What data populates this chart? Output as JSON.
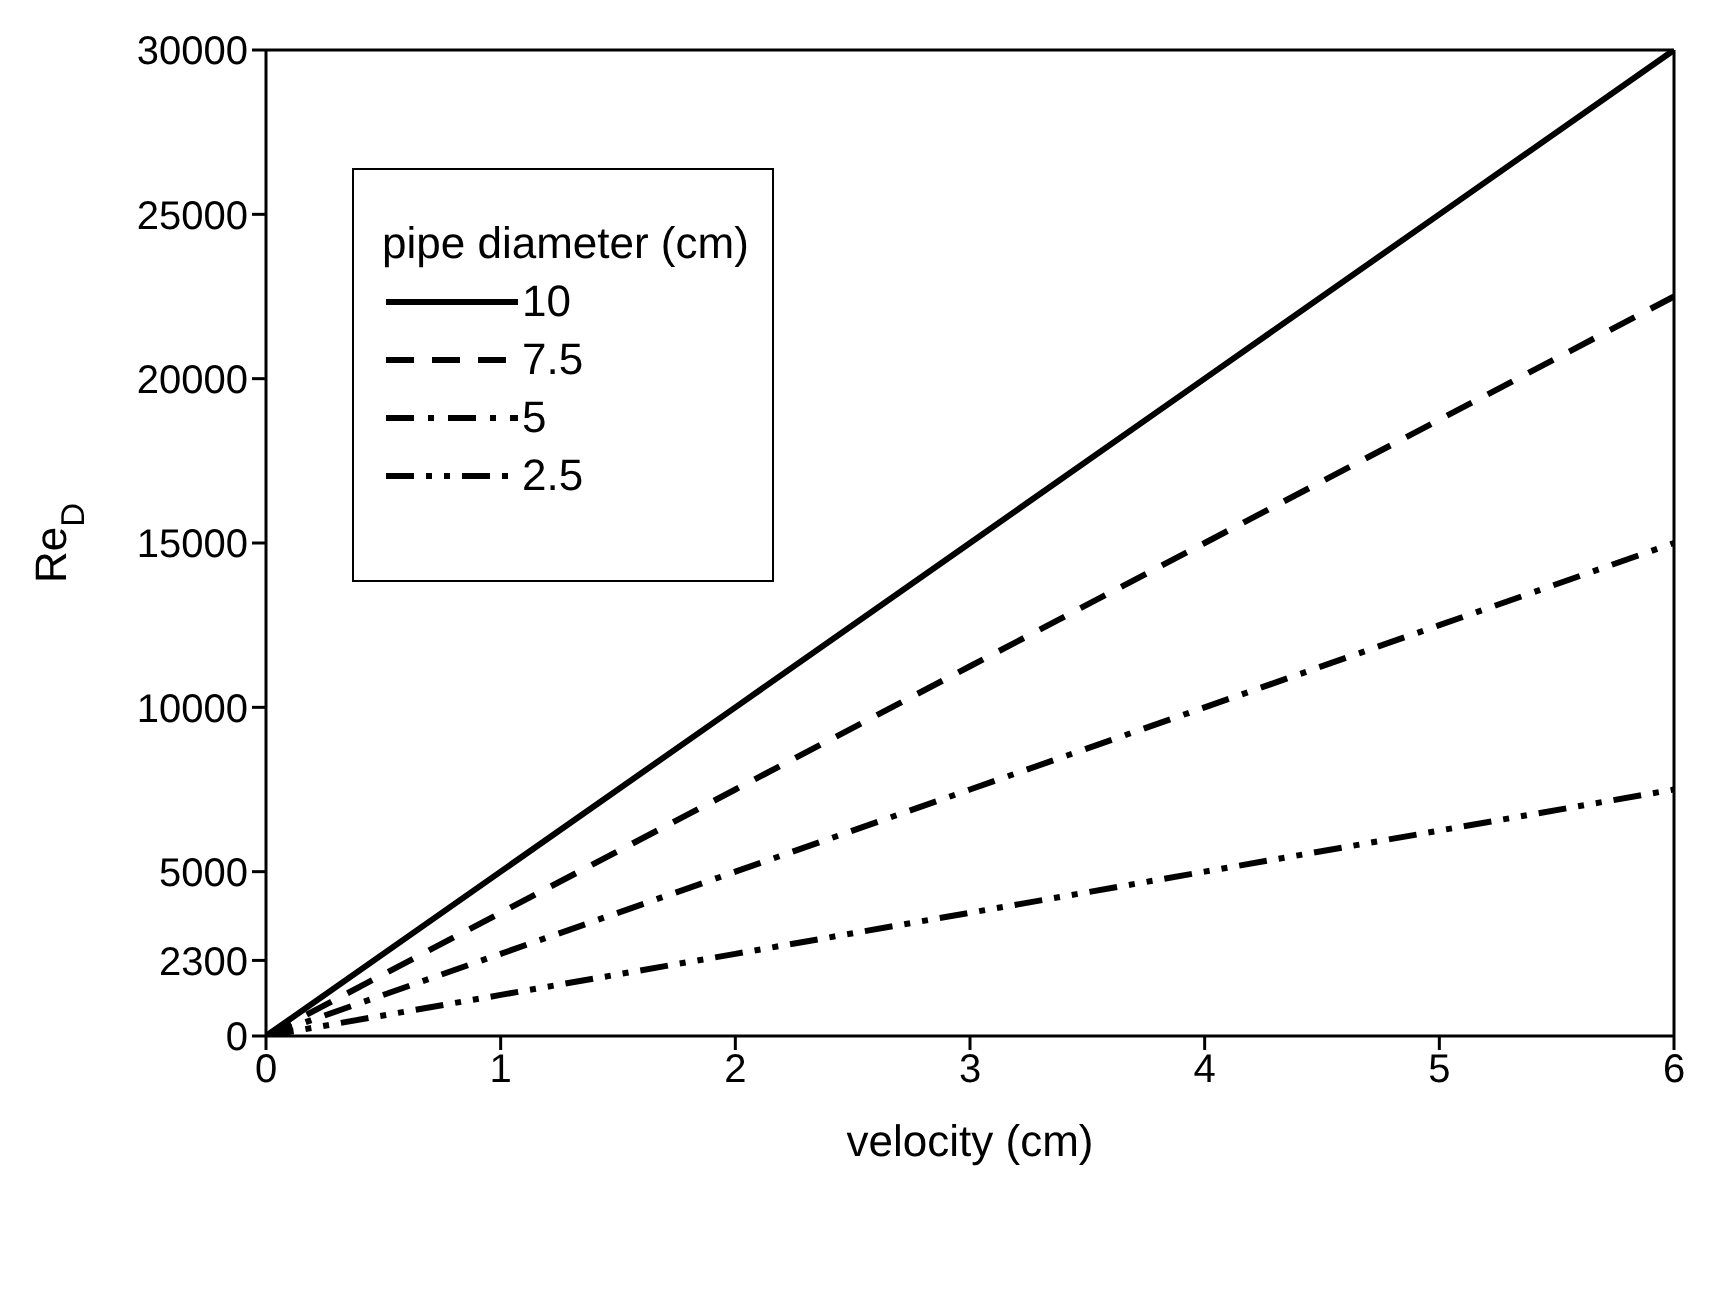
{
  "chart_data": {
    "type": "line",
    "xlabel": "velocity (cm)",
    "ylabel": "Re$_{D}$",
    "legend_title": "pipe diameter (cm)",
    "x": [
      0,
      1,
      2,
      3,
      4,
      5,
      6
    ],
    "series": [
      {
        "name": "10",
        "color": "#000000",
        "line_style": "solid",
        "values": [
          0,
          5000,
          10000,
          15000,
          20000,
          25000,
          30000
        ]
      },
      {
        "name": "7.5",
        "color": "#000000",
        "line_style": "dashed",
        "values": [
          0,
          3750,
          7500,
          11250,
          15000,
          18750,
          22500
        ]
      },
      {
        "name": "5",
        "color": "#000000",
        "line_style": "dashdot",
        "values": [
          0,
          2500,
          5000,
          7500,
          10000,
          12500,
          15000
        ]
      },
      {
        "name": "2.5",
        "color": "#000000",
        "line_style": "dashdotdot",
        "values": [
          0,
          1250,
          2500,
          3750,
          5000,
          6250,
          7500
        ]
      }
    ],
    "xlim": [
      0,
      6
    ],
    "xticks": [
      0,
      1,
      2,
      3,
      4,
      5,
      6
    ],
    "ylim": [
      0,
      30000
    ],
    "yticks": [
      0,
      2300,
      5000,
      10000,
      15000,
      20000,
      25000,
      30000
    ],
    "grid": false,
    "legend": "top left",
    "marker": "none"
  }
}
